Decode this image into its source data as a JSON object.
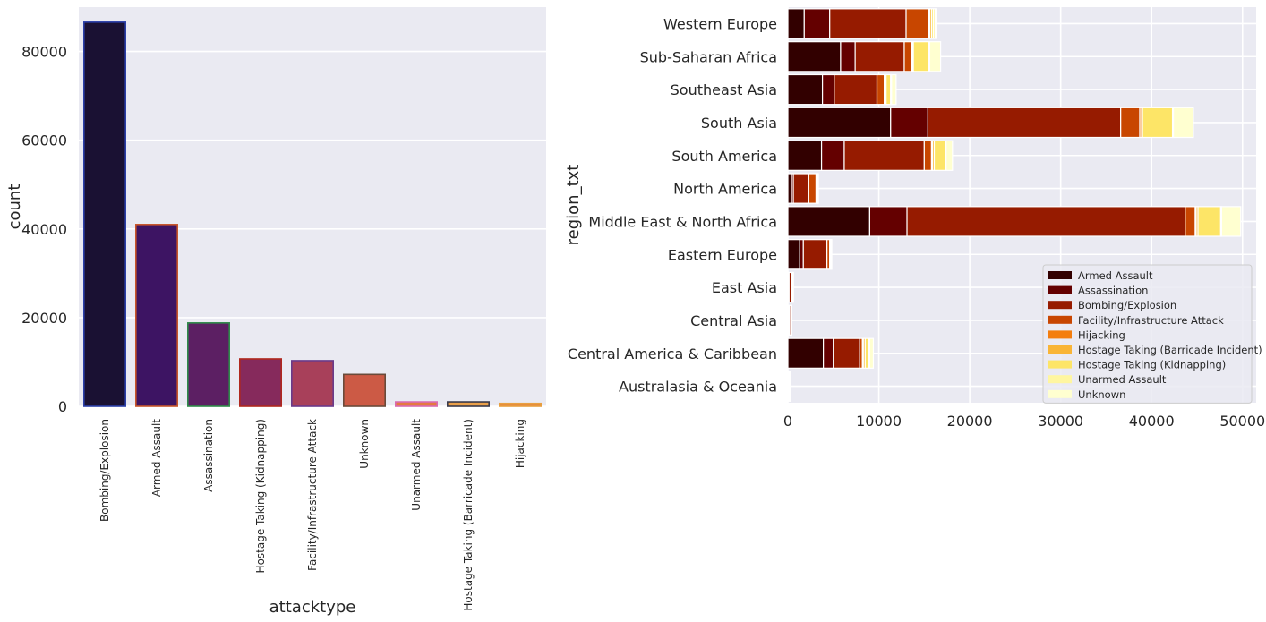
{
  "chart_data": [
    {
      "type": "bar",
      "title": "",
      "xlabel": "attacktype",
      "ylabel": "count",
      "ylim": [
        0,
        90000
      ],
      "yticks": [
        0,
        20000,
        40000,
        60000,
        80000
      ],
      "grid": true,
      "categories": [
        "Bombing/Explosion",
        "Armed Assault",
        "Assassination",
        "Hostage Taking (Kidnapping)",
        "Facility/Infrastructure Attack",
        "Unknown",
        "Unarmed Assault",
        "Hostage Taking (Barricade Incident)",
        "Hijacking"
      ],
      "values": [
        86600,
        41000,
        18800,
        10700,
        10300,
        7200,
        1000,
        1000,
        660
      ],
      "colors": [
        "#1a1133",
        "#3d1463",
        "#5c1f63",
        "#862a5c",
        "#a8405a",
        "#cc5a45",
        "#e47a40",
        "#eaa04a",
        "#e57a3a"
      ],
      "edge_colors": [
        "#2b3fa8",
        "#c8552a",
        "#2f8a4a",
        "#b0281e",
        "#6a3a8a",
        "#6a4a3a",
        "#d96ab0",
        "#3a3a4a",
        "#e8a040"
      ]
    },
    {
      "type": "bar",
      "orientation": "horizontal",
      "stacked": true,
      "title": "",
      "xlabel": "",
      "ylabel": "region_txt",
      "xlim": [
        0,
        51500
      ],
      "xticks": [
        0,
        10000,
        20000,
        30000,
        40000,
        50000
      ],
      "grid": true,
      "legend_position": "lower right",
      "categories": [
        "Western Europe",
        "Sub-Saharan Africa",
        "Southeast Asia",
        "South Asia",
        "South America",
        "North America",
        "Middle East & North Africa",
        "Eastern Europe",
        "East Asia",
        "Central Asia",
        "Central America & Caribbean",
        "Australasia & Oceania"
      ],
      "series": [
        {
          "name": "Armed Assault",
          "color": "#320000",
          "values": [
            1800,
            5800,
            3800,
            11300,
            3700,
            400,
            9000,
            1300,
            50,
            100,
            3900,
            60
          ]
        },
        {
          "name": "Assassination",
          "color": "#640000",
          "values": [
            2800,
            1600,
            1300,
            4100,
            2500,
            200,
            4100,
            400,
            80,
            100,
            1100,
            30
          ]
        },
        {
          "name": "Bombing/Explosion",
          "color": "#961b00",
          "values": [
            8400,
            5400,
            4700,
            21200,
            8800,
            1700,
            30600,
            2600,
            300,
            150,
            2900,
            40
          ]
        },
        {
          "name": "Facility/Infrastructure Attack",
          "color": "#c84600",
          "values": [
            2500,
            800,
            800,
            2100,
            800,
            800,
            1100,
            300,
            100,
            40,
            300,
            80
          ]
        },
        {
          "name": "Hijacking",
          "color": "#f47e0e",
          "values": [
            100,
            100,
            100,
            200,
            100,
            50,
            100,
            20,
            10,
            5,
            100,
            10
          ]
        },
        {
          "name": "Hostage Taking (Barricade Incident)",
          "color": "#f9b536",
          "values": [
            200,
            100,
            100,
            100,
            200,
            50,
            200,
            30,
            10,
            5,
            200,
            5
          ]
        },
        {
          "name": "Hostage Taking (Kidnapping)",
          "color": "#fde567",
          "values": [
            200,
            1700,
            500,
            3300,
            1200,
            20,
            2500,
            100,
            30,
            20,
            400,
            10
          ]
        },
        {
          "name": "Unarmed Assault",
          "color": "#fff6a0",
          "values": [
            200,
            100,
            100,
            100,
            100,
            100,
            100,
            30,
            10,
            5,
            100,
            30
          ]
        },
        {
          "name": "Unknown",
          "color": "#ffffd0",
          "values": [
            100,
            1200,
            500,
            2200,
            700,
            40,
            2100,
            50,
            20,
            10,
            400,
            20
          ]
        }
      ]
    }
  ]
}
